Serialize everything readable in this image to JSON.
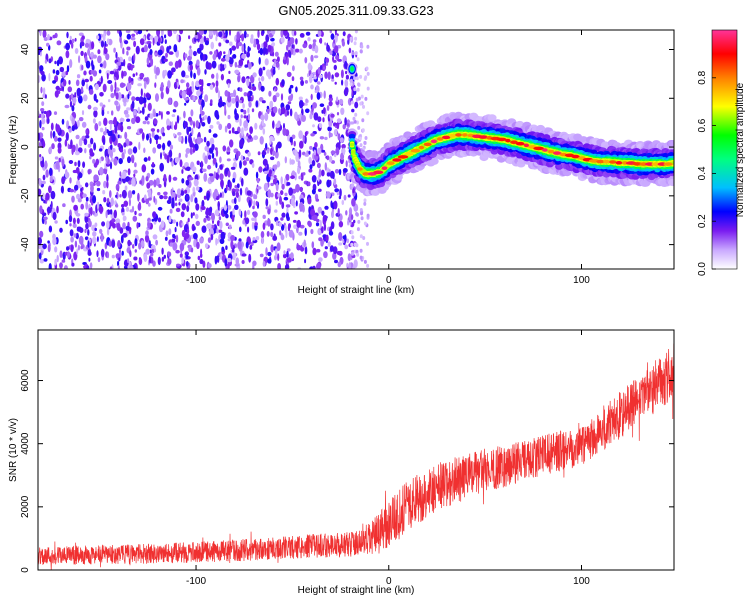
{
  "title": "GN05.2025.311.09.33.G23",
  "chart_data": [
    {
      "type": "heatmap",
      "title": "GN05.2025.311.09.33.G23",
      "xlabel": "Height of straight line (km)",
      "ylabel": "Frequency (Hz)",
      "xlim": [
        -182,
        148
      ],
      "ylim": [
        -50,
        48
      ],
      "xticks": [
        -100,
        0,
        100
      ],
      "xtick_labels": [
        "-100",
        "0",
        "100"
      ],
      "yticks": [
        -40,
        -20,
        0,
        20,
        40
      ],
      "ytick_labels": [
        "-40",
        "-20",
        "0",
        "20",
        "40"
      ],
      "noise_region": {
        "x_from": -182,
        "x_to": -20,
        "description_level": "low amplitude (0.1-0.3)"
      },
      "ridge": {
        "name": "",
        "x": [
          -19,
          -18,
          -15,
          -12,
          -8,
          -4,
          0,
          5,
          10,
          15,
          20,
          25,
          30,
          35,
          40,
          45,
          50,
          55,
          60,
          65,
          70,
          75,
          80,
          85,
          90,
          95,
          100,
          105,
          110,
          115,
          120,
          125,
          130,
          135,
          140,
          145,
          148
        ],
        "y": [
          1,
          -4,
          -9,
          -11,
          -11,
          -10,
          -7,
          -5,
          -3,
          -1,
          1,
          3,
          4,
          5,
          5,
          4.5,
          4,
          3.5,
          3,
          2,
          1,
          0,
          -1,
          -2,
          -3,
          -3.5,
          -4.5,
          -5.5,
          -6,
          -6,
          -6.5,
          -6.5,
          -7,
          -7,
          -7,
          -7,
          -6.5
        ]
      },
      "isolated_blob": {
        "x": -19,
        "y": 32
      },
      "colorbar": {
        "label": "Normalized spectral amplitude",
        "range": [
          0,
          1
        ],
        "ticks": [
          0.0,
          0.2,
          0.4,
          0.6,
          0.8
        ],
        "tick_labels": [
          "0.0",
          "0.2",
          "0.4",
          "0.6",
          "0.8"
        ],
        "colors": [
          "#ffffff",
          "#c9a8ff",
          "#7a1cf0",
          "#0000ff",
          "#00bfff",
          "#00ff80",
          "#00ff00",
          "#ffff00",
          "#ff8000",
          "#ff0000",
          "#ff3399"
        ]
      },
      "grid": false
    },
    {
      "type": "line",
      "xlabel": "Height of straight line (km)",
      "ylabel": "SNR (10 * v/v)",
      "xlim": [
        -182,
        148
      ],
      "ylim": [
        0,
        7600
      ],
      "xticks": [
        -100,
        0,
        100
      ],
      "xtick_labels": [
        "-100",
        "0",
        "100"
      ],
      "yticks": [
        0,
        2000,
        4000,
        6000
      ],
      "ytick_labels": [
        "0",
        "2000",
        "4000",
        "6000"
      ],
      "series": [
        {
          "name": "",
          "color": "#f03030",
          "trend_x": [
            -182,
            -150,
            -120,
            -100,
            -80,
            -60,
            -40,
            -20,
            -15,
            -10,
            -5,
            0,
            10,
            20,
            30,
            50,
            70,
            90,
            100,
            110,
            120,
            130,
            140,
            148
          ],
          "trend_y": [
            450,
            480,
            520,
            560,
            620,
            680,
            760,
            820,
            850,
            950,
            1150,
            1500,
            2050,
            2450,
            2750,
            3150,
            3450,
            3800,
            4000,
            4400,
            4900,
            5400,
            5900,
            6300
          ],
          "noise_amplitude": [
            300,
            300,
            320,
            330,
            350,
            360,
            380,
            400,
            450,
            550,
            650,
            750,
            800,
            800,
            780,
            700,
            650,
            650,
            700,
            750,
            750,
            800,
            850,
            900
          ]
        }
      ],
      "grid": false
    }
  ]
}
